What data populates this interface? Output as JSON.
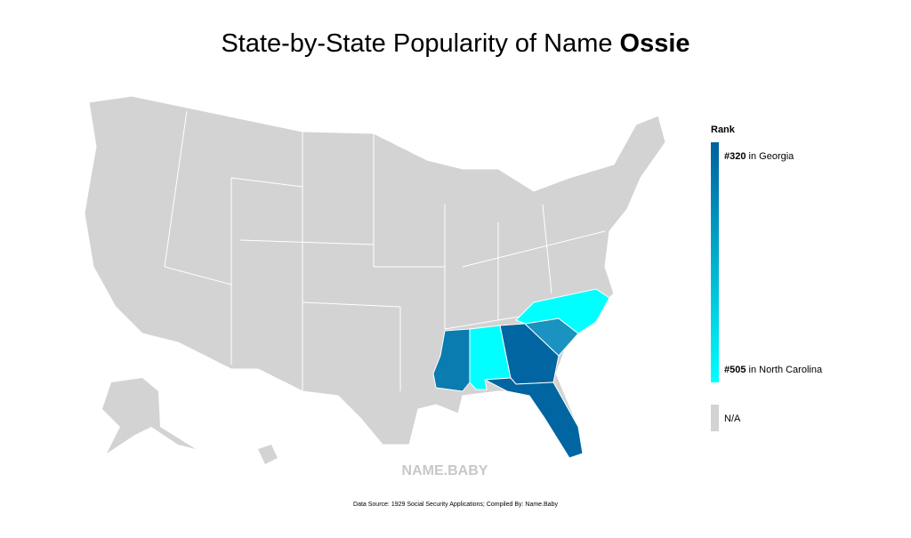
{
  "title": {
    "text": "State-by-State Popularity of Name ",
    "name": "Ossie"
  },
  "legend": {
    "heading": "Rank",
    "top": {
      "rank": "#320",
      "state": " in Georgia"
    },
    "bottom": {
      "rank": "#505",
      "state": " in North Carolina"
    },
    "na": "N/A"
  },
  "watermark": "NAME.BABY",
  "source": "Data Source: 1929 Social Security Applications; Compiled By: Name.Baby"
}
